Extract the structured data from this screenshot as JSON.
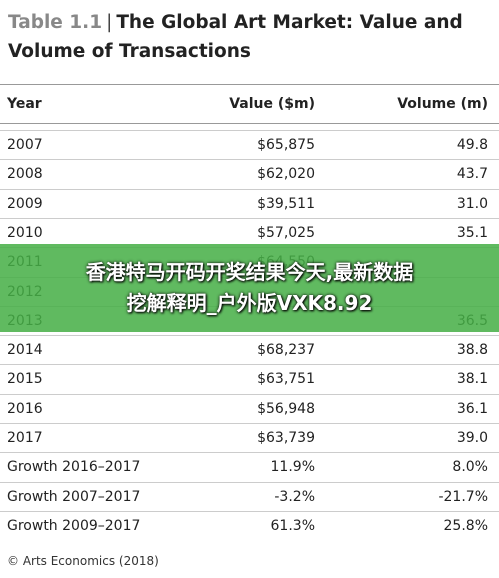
{
  "header": {
    "label": "Table 1.1",
    "title_line1": "The Global Art Market: Value and",
    "title_line2": "Volume of Transactions"
  },
  "table": {
    "columns": [
      "Year",
      "Value ($m)",
      "Volume (m)"
    ],
    "rows": [
      [
        "2007",
        "$65,875",
        "49.8"
      ],
      [
        "2008",
        "$62,020",
        "43.7"
      ],
      [
        "2009",
        "$39,511",
        "31.0"
      ],
      [
        "2010",
        "$57,025",
        "35.1"
      ],
      [
        "2011",
        "$64,550",
        null
      ],
      [
        "2012",
        null,
        null
      ],
      [
        "2013",
        null,
        "36.5"
      ],
      [
        "2014",
        "$68,237",
        "38.8"
      ],
      [
        "2015",
        "$63,751",
        "38.1"
      ],
      [
        "2016",
        "$56,948",
        "36.1"
      ],
      [
        "2017",
        "$63,739",
        "39.0"
      ],
      [
        "Growth 2016–2017",
        "11.9%",
        "8.0%"
      ],
      [
        "Growth 2007–2017",
        "-3.2%",
        "-21.7%"
      ],
      [
        "Growth 2009–2017",
        "61.3%",
        "25.8%"
      ]
    ]
  },
  "source": "© Arts Economics (2018)",
  "banner": {
    "line1": "香港特马开码开奖结果今天,最新数据",
    "line2": "挖解释明_户外版VXK8.92"
  }
}
